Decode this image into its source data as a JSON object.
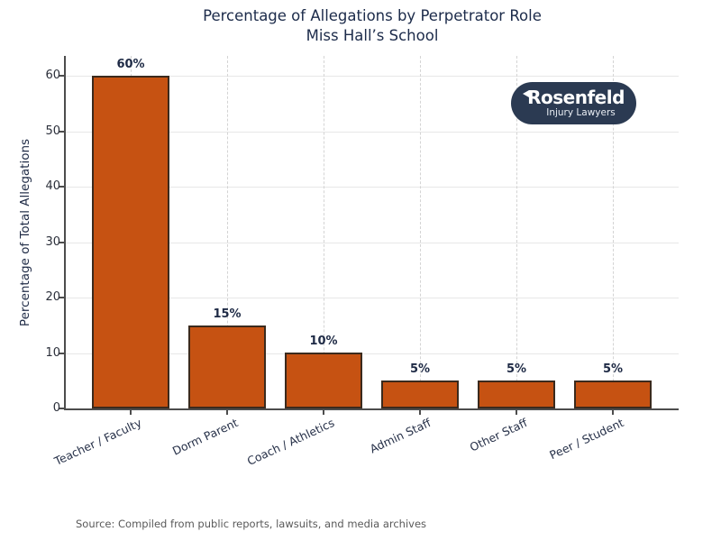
{
  "title": {
    "line1": "Percentage of Allegations by Perpetrator Role",
    "line2": "Miss Hall’s School"
  },
  "logo": {
    "name": "Rosenfeld",
    "tagline": "Injury Lawyers",
    "bg_color": "#2b3a52",
    "text_color": "#ffffff"
  },
  "source": "Source: Compiled from public reports, lawsuits, and media archives",
  "chart_data": {
    "type": "bar",
    "title": "Percentage of Allegations by Perpetrator Role\nMiss Hall’s School",
    "categories": [
      "Teacher / Faculty",
      "Dorm Parent",
      "Coach / Athletics",
      "Admin Staff",
      "Other Staff",
      "Peer / Student"
    ],
    "values": [
      60,
      15,
      10,
      5,
      5,
      5
    ],
    "value_labels": [
      "60%",
      "15%",
      "10%",
      "5%",
      "5%",
      "5%"
    ],
    "xlabel": "",
    "ylabel": "Percentage of Total Allegations",
    "ylim": [
      0,
      63
    ],
    "yticks": [
      0,
      10,
      20,
      30,
      40,
      50,
      60
    ],
    "ytick_labels": [
      "0",
      "10",
      "20",
      "30",
      "40",
      "50",
      "60"
    ],
    "bar_color": "#c65212",
    "bar_edge_color": "#3b2a1d",
    "grid": true,
    "grid_horizontal_style": "solid",
    "grid_vertical_style": "dashed",
    "legend": false
  }
}
